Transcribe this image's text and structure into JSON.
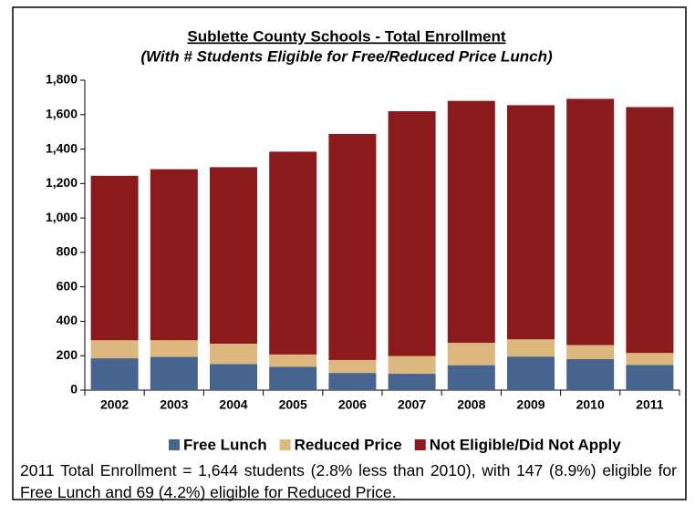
{
  "chart_data": {
    "type": "stacked_bar",
    "title": "Sublette County Schools - Total Enrollment",
    "subtitle": "(With # Students Eligible for Free/Reduced Price Lunch)",
    "categories": [
      "2002",
      "2003",
      "2004",
      "2005",
      "2006",
      "2007",
      "2008",
      "2009",
      "2010",
      "2011"
    ],
    "series": [
      {
        "name": "Free Lunch",
        "color": "#47648f",
        "values": [
          185,
          193,
          152,
          135,
          100,
          95,
          145,
          195,
          180,
          147
        ]
      },
      {
        "name": "Reduced Price",
        "color": "#dcb87f",
        "values": [
          105,
          97,
          118,
          72,
          75,
          103,
          130,
          100,
          82,
          69
        ]
      },
      {
        "name": "Not Eligible/Did Not Apply",
        "color": "#8b1a1c",
        "values": [
          955,
          993,
          1025,
          1178,
          1313,
          1422,
          1405,
          1360,
          1430,
          1428
        ]
      }
    ],
    "ylim": [
      0,
      1800
    ],
    "yticks": [
      0,
      200,
      400,
      600,
      800,
      {
        "value": 1000,
        "label": "1,000"
      },
      {
        "value": 1200,
        "label": "1,200"
      },
      {
        "value": 1400,
        "label": "1,400"
      },
      {
        "value": 1600,
        "label": "1,600"
      },
      {
        "value": 1800,
        "label": "1,800"
      }
    ],
    "grid": false,
    "legend": "bottom",
    "footer": "2011 Total Enrollment = 1,644 students (2.8% less than 2010), with 147 (8.9%) eligible for Free Lunch and 69 (4.2%) eligible for Reduced Price."
  }
}
